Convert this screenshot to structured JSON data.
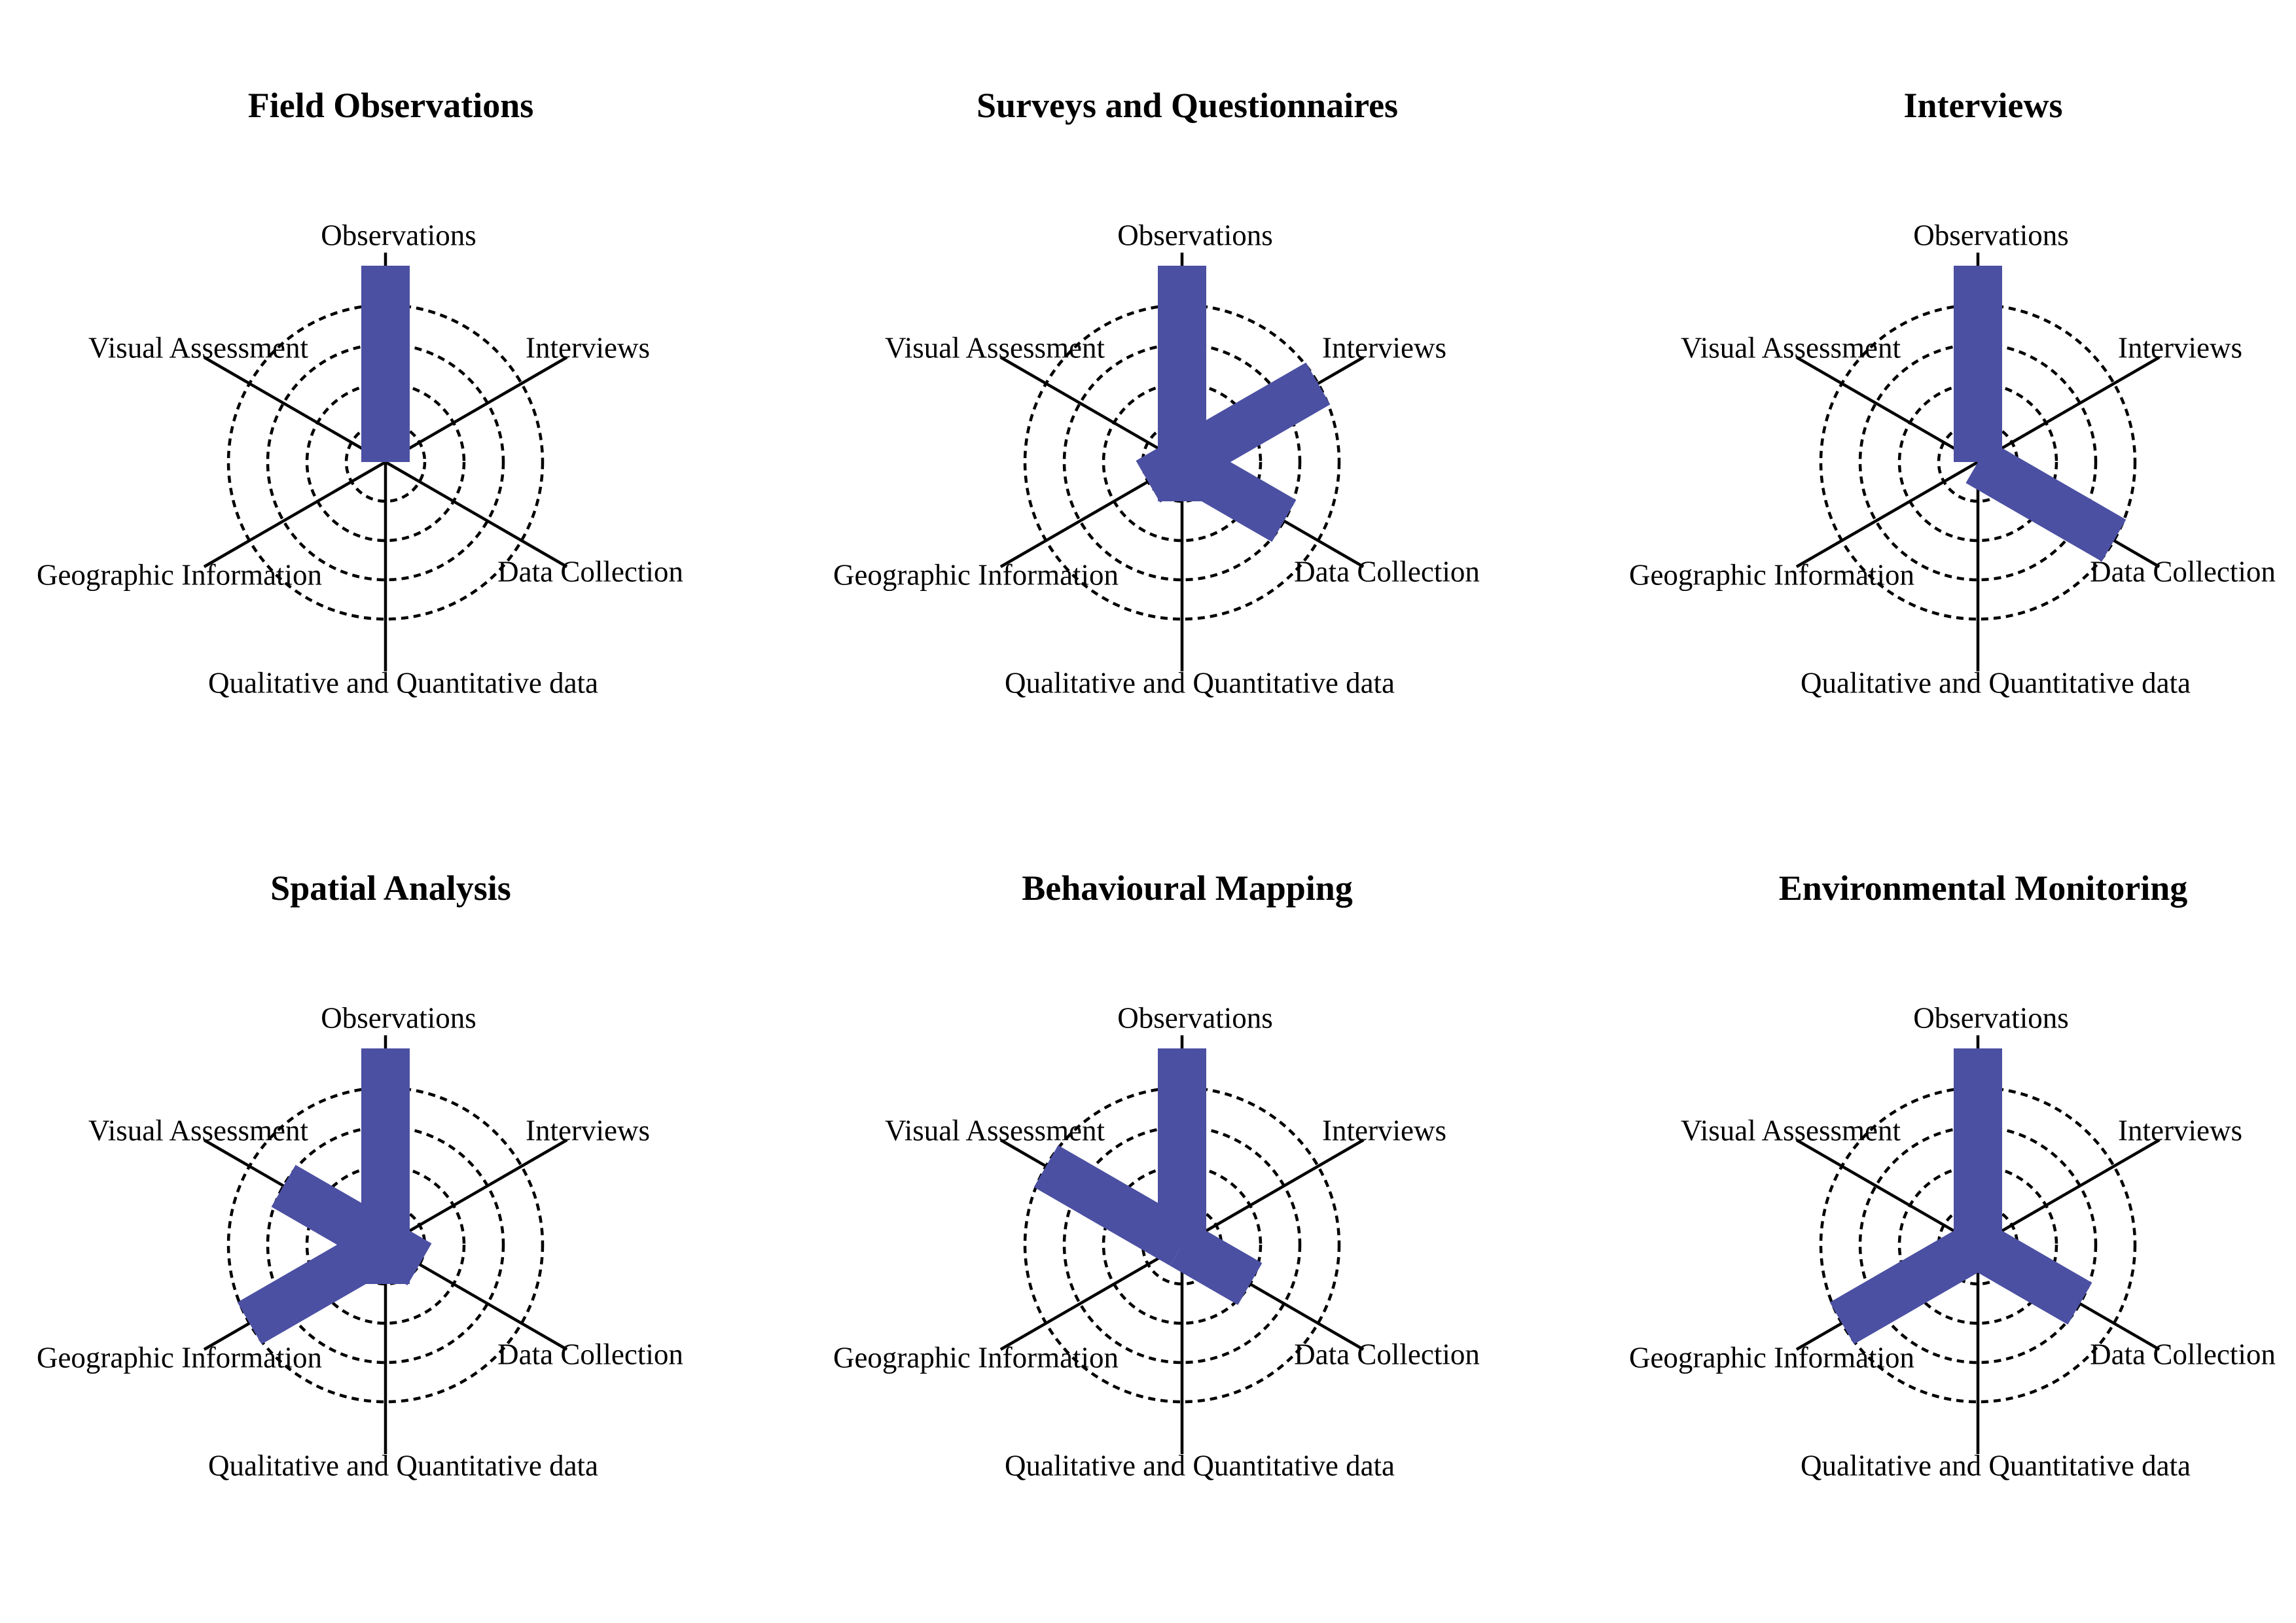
{
  "chart_data": {
    "type": "polar-bar",
    "categories": [
      "Observations",
      "Interviews",
      "Data Collection",
      "Qualitative and Quantitative data",
      "Geographic Information",
      "Visual Assessment"
    ],
    "rlim": [
      0,
      5.4
    ],
    "rings": [
      1,
      2,
      3,
      4
    ],
    "grid": true,
    "bar_color": "#4B50A2",
    "panels": [
      {
        "title": "Field Observations",
        "values": [
          5,
          0,
          0,
          0,
          0,
          0
        ]
      },
      {
        "title": "Surveys and Questionnaires",
        "values": [
          5,
          4,
          3,
          1,
          1,
          0
        ]
      },
      {
        "title": "Interviews",
        "values": [
          5,
          0,
          4,
          0,
          0,
          0
        ]
      },
      {
        "title": "Spatial Analysis",
        "values": [
          5,
          0,
          1,
          1,
          4,
          3
        ]
      },
      {
        "title": "Behavioural Mapping",
        "values": [
          5,
          0,
          2,
          0,
          0,
          4
        ]
      },
      {
        "title": "Environmental Monitoring",
        "values": [
          5,
          0,
          3,
          0,
          4,
          0
        ]
      }
    ]
  }
}
